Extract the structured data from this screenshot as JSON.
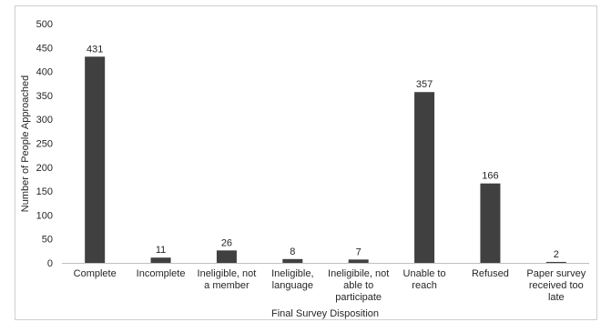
{
  "chart_data": {
    "type": "bar",
    "title": "",
    "xlabel": "Final Survey Disposition",
    "ylabel": "Number of People Approached",
    "ylim": [
      0,
      500
    ],
    "yticks": [
      0,
      50,
      100,
      150,
      200,
      250,
      300,
      350,
      400,
      450,
      500
    ],
    "categories": [
      [
        "Complete"
      ],
      [
        "Incomplete"
      ],
      [
        "Ineligible, not",
        "a member"
      ],
      [
        "Ineligible,",
        "language"
      ],
      [
        "Ineligibile, not",
        "able to",
        "participate"
      ],
      [
        "Unable to",
        "reach"
      ],
      [
        "Refused"
      ],
      [
        "Paper survey",
        "received too",
        "late"
      ]
    ],
    "values": [
      431,
      11,
      26,
      8,
      7,
      357,
      166,
      2
    ],
    "data_labels": [
      "431",
      "11",
      "26",
      "8",
      "7",
      "357",
      "166",
      "2"
    ],
    "grid": false,
    "legend": "none",
    "colors": {
      "bar": "#404040",
      "axis": "#bfbfbf",
      "text": "#262626"
    }
  }
}
